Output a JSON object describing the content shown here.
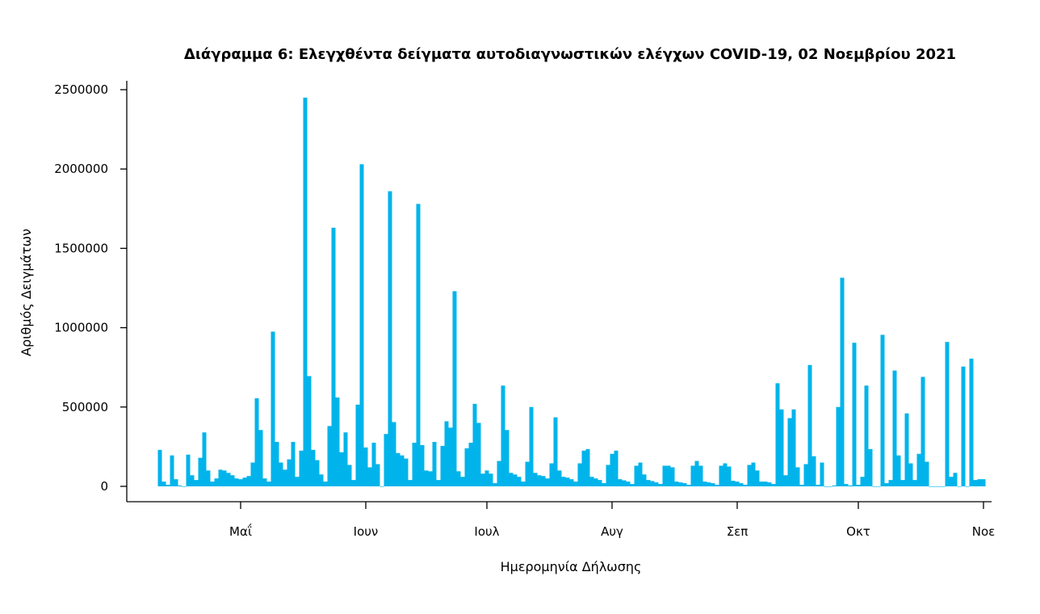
{
  "chart_data": {
    "type": "bar",
    "title": "Διάγραμμα 6: Ελεγχθέντα δείγματα αυτοδιαγνωστικών ελέγχων COVID-19, 02 Νοεμβρίου 2021",
    "xlabel": "Ημερομηνία Δήλωσης",
    "ylabel": "Αριθμός Δειγμάτων",
    "ylim": [
      0,
      2500000
    ],
    "yticks": [
      "0",
      "500000",
      "1000000",
      "1500000",
      "2000000",
      "2500000"
    ],
    "xticks": [
      {
        "date": "2021-05-01",
        "label": "Μαΐ"
      },
      {
        "date": "2021-06-01",
        "label": "Ιουν"
      },
      {
        "date": "2021-07-01",
        "label": "Ιουλ"
      },
      {
        "date": "2021-08-01",
        "label": "Αυγ"
      },
      {
        "date": "2021-09-01",
        "label": "Σεπ"
      },
      {
        "date": "2021-10-01",
        "label": "Οκτ"
      },
      {
        "date": "2021-11-01",
        "label": "Νοε"
      }
    ],
    "grid": false,
    "color": "#00B4EB",
    "x": [
      "2021-04-11",
      "2021-04-12",
      "2021-04-13",
      "2021-04-14",
      "2021-04-15",
      "2021-04-16",
      "2021-04-17",
      "2021-04-18",
      "2021-04-19",
      "2021-04-20",
      "2021-04-21",
      "2021-04-22",
      "2021-04-23",
      "2021-04-24",
      "2021-04-25",
      "2021-04-26",
      "2021-04-27",
      "2021-04-28",
      "2021-04-29",
      "2021-04-30",
      "2021-05-01",
      "2021-05-02",
      "2021-05-03",
      "2021-05-04",
      "2021-05-05",
      "2021-05-06",
      "2021-05-07",
      "2021-05-08",
      "2021-05-09",
      "2021-05-10",
      "2021-05-11",
      "2021-05-12",
      "2021-05-13",
      "2021-05-14",
      "2021-05-15",
      "2021-05-16",
      "2021-05-17",
      "2021-05-18",
      "2021-05-19",
      "2021-05-20",
      "2021-05-21",
      "2021-05-22",
      "2021-05-23",
      "2021-05-24",
      "2021-05-25",
      "2021-05-26",
      "2021-05-27",
      "2021-05-28",
      "2021-05-29",
      "2021-05-30",
      "2021-05-31",
      "2021-06-01",
      "2021-06-02",
      "2021-06-03",
      "2021-06-04",
      "2021-06-05",
      "2021-06-06",
      "2021-06-07",
      "2021-06-08",
      "2021-06-09",
      "2021-06-10",
      "2021-06-11",
      "2021-06-12",
      "2021-06-13",
      "2021-06-14",
      "2021-06-15",
      "2021-06-16",
      "2021-06-17",
      "2021-06-18",
      "2021-06-19",
      "2021-06-20",
      "2021-06-21",
      "2021-06-22",
      "2021-06-23",
      "2021-06-24",
      "2021-06-25",
      "2021-06-26",
      "2021-06-27",
      "2021-06-28",
      "2021-06-29",
      "2021-06-30",
      "2021-07-01",
      "2021-07-02",
      "2021-07-03",
      "2021-07-04",
      "2021-07-05",
      "2021-07-06",
      "2021-07-07",
      "2021-07-08",
      "2021-07-09",
      "2021-07-10",
      "2021-07-11",
      "2021-07-12",
      "2021-07-13",
      "2021-07-14",
      "2021-07-15",
      "2021-07-16",
      "2021-07-17",
      "2021-07-18",
      "2021-07-19",
      "2021-07-20",
      "2021-07-21",
      "2021-07-22",
      "2021-07-23",
      "2021-07-24",
      "2021-07-25",
      "2021-07-26",
      "2021-07-27",
      "2021-07-28",
      "2021-07-29",
      "2021-07-30",
      "2021-07-31",
      "2021-08-01",
      "2021-08-02",
      "2021-08-03",
      "2021-08-04",
      "2021-08-05",
      "2021-08-06",
      "2021-08-07",
      "2021-08-08",
      "2021-08-09",
      "2021-08-10",
      "2021-08-11",
      "2021-08-12",
      "2021-08-13",
      "2021-08-14",
      "2021-08-15",
      "2021-08-16",
      "2021-08-17",
      "2021-08-18",
      "2021-08-19",
      "2021-08-20",
      "2021-08-21",
      "2021-08-22",
      "2021-08-23",
      "2021-08-24",
      "2021-08-25",
      "2021-08-26",
      "2021-08-27",
      "2021-08-28",
      "2021-08-29",
      "2021-08-30",
      "2021-08-31",
      "2021-09-01",
      "2021-09-02",
      "2021-09-03",
      "2021-09-04",
      "2021-09-05",
      "2021-09-06",
      "2021-09-07",
      "2021-09-08",
      "2021-09-09",
      "2021-09-10",
      "2021-09-11",
      "2021-09-12",
      "2021-09-13",
      "2021-09-14",
      "2021-09-15",
      "2021-09-16",
      "2021-09-17",
      "2021-09-18",
      "2021-09-19",
      "2021-09-20",
      "2021-09-21",
      "2021-09-22",
      "2021-09-23",
      "2021-09-24",
      "2021-09-25",
      "2021-09-26",
      "2021-09-27",
      "2021-09-28",
      "2021-09-29",
      "2021-09-30",
      "2021-10-01",
      "2021-10-02",
      "2021-10-03",
      "2021-10-04",
      "2021-10-05",
      "2021-10-06",
      "2021-10-07",
      "2021-10-08",
      "2021-10-09",
      "2021-10-10",
      "2021-10-11",
      "2021-10-12",
      "2021-10-13",
      "2021-10-14",
      "2021-10-15",
      "2021-10-16",
      "2021-10-17",
      "2021-10-18",
      "2021-10-19",
      "2021-10-20",
      "2021-10-21",
      "2021-10-22",
      "2021-10-23",
      "2021-10-24",
      "2021-10-25",
      "2021-10-26",
      "2021-10-27",
      "2021-10-28",
      "2021-10-29",
      "2021-10-30",
      "2021-10-31",
      "2021-11-01"
    ],
    "values": [
      230000,
      30000,
      10000,
      195000,
      45000,
      5000,
      0,
      200000,
      70000,
      40000,
      180000,
      340000,
      100000,
      30000,
      50000,
      105000,
      100000,
      85000,
      70000,
      50000,
      45000,
      55000,
      65000,
      150000,
      555000,
      355000,
      50000,
      30000,
      975000,
      280000,
      150000,
      105000,
      170000,
      280000,
      60000,
      225000,
      2450000,
      695000,
      230000,
      165000,
      75000,
      30000,
      380000,
      1630000,
      560000,
      215000,
      340000,
      135000,
      40000,
      515000,
      2030000,
      245000,
      120000,
      275000,
      140000,
      0,
      330000,
      1860000,
      405000,
      210000,
      195000,
      175000,
      40000,
      275000,
      1780000,
      260000,
      100000,
      95000,
      280000,
      40000,
      255000,
      410000,
      370000,
      1230000,
      95000,
      60000,
      240000,
      275000,
      520000,
      400000,
      80000,
      100000,
      80000,
      20000,
      160000,
      635000,
      355000,
      85000,
      75000,
      60000,
      30000,
      155000,
      500000,
      85000,
      70000,
      65000,
      50000,
      145000,
      435000,
      100000,
      60000,
      55000,
      45000,
      30000,
      145000,
      225000,
      235000,
      60000,
      50000,
      40000,
      20000,
      135000,
      205000,
      225000,
      45000,
      38000,
      30000,
      15000,
      130000,
      150000,
      75000,
      40000,
      33000,
      25000,
      15000,
      130000,
      130000,
      120000,
      30000,
      25000,
      20000,
      10000,
      130000,
      160000,
      130000,
      30000,
      25000,
      20000,
      10000,
      130000,
      145000,
      125000,
      35000,
      30000,
      20000,
      10000,
      135000,
      150000,
      100000,
      30000,
      30000,
      25000,
      15000,
      650000,
      485000,
      70000,
      430000,
      485000,
      120000,
      10000,
      140000,
      765000,
      190000,
      10000,
      150000,
      0,
      0,
      5000,
      500000,
      1315000,
      15000,
      5000,
      905000,
      10000,
      60000,
      635000,
      235000,
      0,
      0,
      955000,
      20000,
      40000,
      730000,
      195000,
      40000,
      460000,
      145000,
      40000,
      205000,
      690000,
      155000,
      0,
      0,
      0,
      0,
      910000,
      60000,
      85000,
      0,
      755000,
      0,
      805000,
      40000,
      45000,
      45000
    ]
  }
}
